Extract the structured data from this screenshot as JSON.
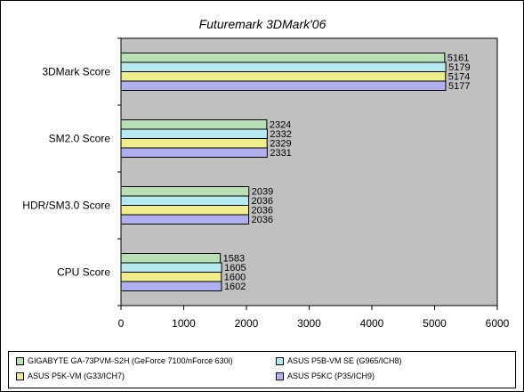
{
  "chart_data": {
    "type": "bar",
    "orientation": "horizontal",
    "title": "Futuremark 3DMark'06",
    "categories": [
      "3DMark Score",
      "SM2.0 Score",
      "HDR/SM3.0 Score",
      "CPU Score"
    ],
    "series": [
      {
        "name": "GIGABYTE GA-73PVM-S2H (GeForce 7100/nForce 630i)",
        "color": "#b8e0b4",
        "values": [
          5161,
          2324,
          2039,
          1583
        ]
      },
      {
        "name": "ASUS P5B-VM SE (G965/ICH8)",
        "color": "#b4eaf0",
        "values": [
          5179,
          2332,
          2036,
          1605
        ]
      },
      {
        "name": "ASUS P5K-VM (G33/ICH7)",
        "color": "#f0ee8c",
        "values": [
          5174,
          2329,
          2036,
          1600
        ]
      },
      {
        "name": "ASUS P5KC (P35/ICH9)",
        "color": "#b0b0f0",
        "values": [
          5177,
          2331,
          2036,
          1602
        ]
      }
    ],
    "xlim": [
      0,
      6000
    ],
    "xticks": [
      0,
      1000,
      2000,
      3000,
      4000,
      5000,
      6000
    ],
    "grid": false,
    "legend_position": "bottom",
    "background": "#c0c0c0"
  }
}
